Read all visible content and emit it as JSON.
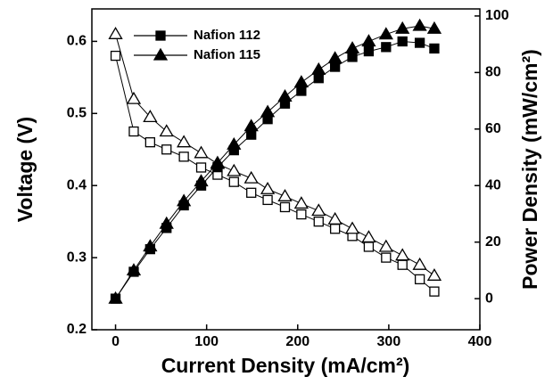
{
  "chart_data": {
    "type": "line",
    "xlabel": "Current Density (mA/cm²)",
    "ylabel": "Voltage (V)",
    "y2label": "Power Density (mW/cm²)",
    "x": [
      0,
      20,
      38,
      56,
      75,
      94,
      112,
      130,
      149,
      167,
      186,
      204,
      223,
      241,
      260,
      278,
      297,
      315,
      334,
      350
    ],
    "xlim": [
      -26,
      400
    ],
    "xticks": [
      0,
      100,
      200,
      300,
      400
    ],
    "ylim": [
      0.2,
      0.645
    ],
    "yticks": [
      0.2,
      0.3,
      0.4,
      0.5,
      0.6
    ],
    "y2lim": [
      -11,
      102.5
    ],
    "y2ticks": [
      0,
      20,
      40,
      60,
      80,
      100
    ],
    "legend": "upper left",
    "series": [
      {
        "name": "Nafion 112",
        "marker": "square",
        "color": "#000000",
        "values": [
          0.58,
          0.475,
          0.46,
          0.45,
          0.44,
          0.425,
          0.415,
          0.405,
          0.39,
          0.38,
          0.37,
          0.36,
          0.35,
          0.34,
          0.33,
          0.315,
          0.3,
          0.29,
          0.27,
          0.253
        ],
        "power_values": [
          0,
          9.5,
          17.5,
          25,
          33,
          40,
          46.5,
          52.5,
          58,
          63.5,
          69,
          73.5,
          78,
          82,
          85.5,
          87.5,
          89,
          91,
          90.5,
          88.5
        ]
      },
      {
        "name": "Nafion 115",
        "marker": "triangle",
        "color": "#000000",
        "values": [
          0.61,
          0.52,
          0.495,
          0.475,
          0.46,
          0.445,
          0.43,
          0.42,
          0.41,
          0.395,
          0.385,
          0.375,
          0.365,
          0.353,
          0.34,
          0.328,
          0.315,
          0.303,
          0.29,
          0.275
        ],
        "power_values": [
          0,
          10,
          18.5,
          26.5,
          34.5,
          41.5,
          48,
          54.5,
          61,
          66,
          71.5,
          76.5,
          81,
          85,
          88.5,
          91,
          93.5,
          95.5,
          96.5,
          95.5
        ]
      }
    ]
  }
}
